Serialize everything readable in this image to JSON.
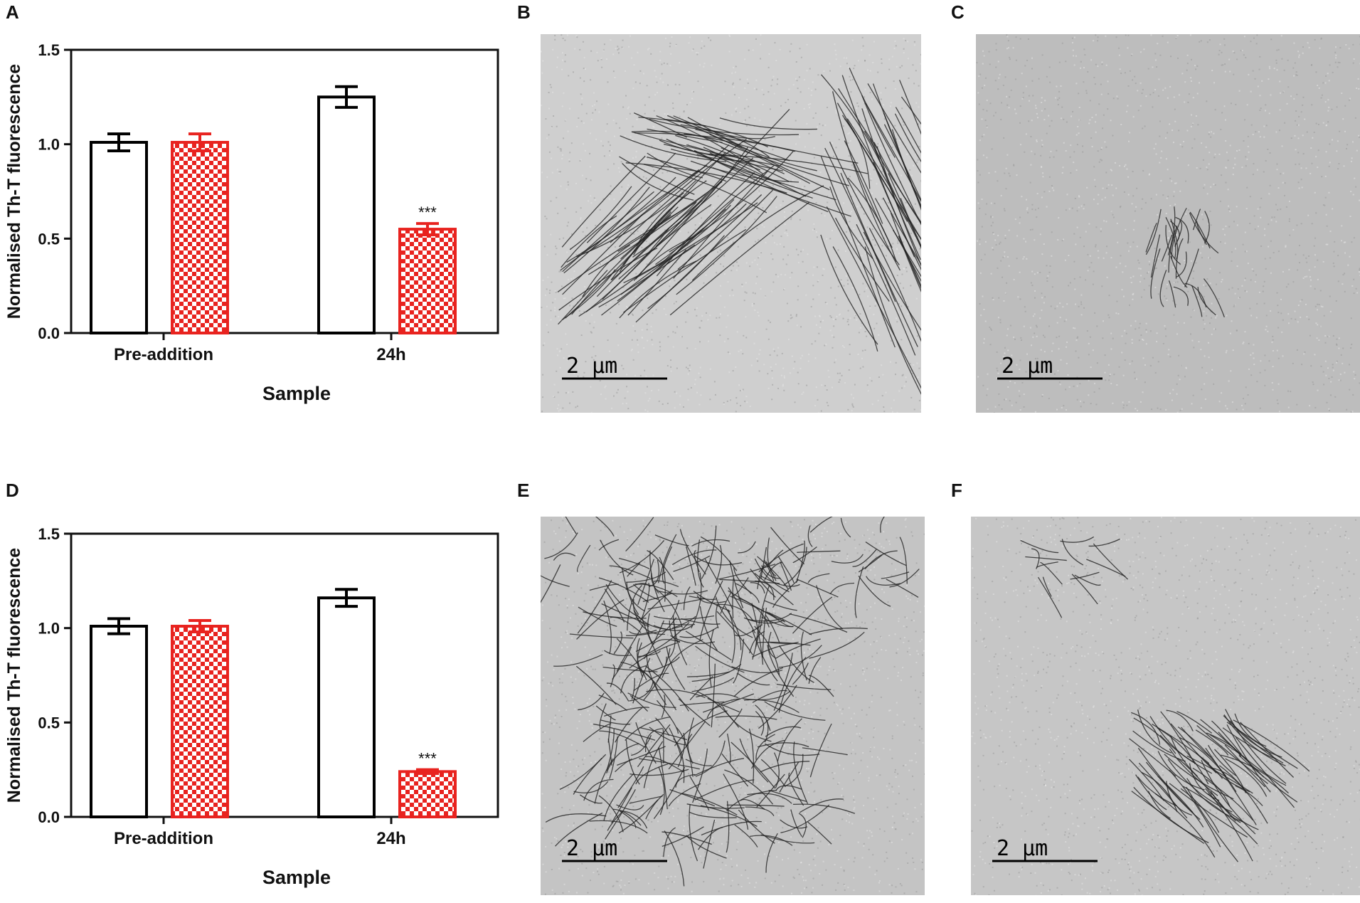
{
  "figure": {
    "panels": [
      "A",
      "B",
      "C",
      "D",
      "E",
      "F"
    ],
    "scale_bar_label": "2 µm"
  },
  "chart_data": [
    {
      "panel": "A",
      "type": "bar",
      "xlabel": "Sample",
      "ylabel": "Normalised Th-T fluorescence",
      "ylim": [
        0,
        1.5
      ],
      "yticks": [
        "0.0",
        "0.5",
        "1.0",
        "1.5"
      ],
      "categories": [
        "Pre-addition",
        "24h"
      ],
      "series": [
        {
          "values": [
            1.01,
            1.25
          ],
          "errors": [
            0.045,
            0.055
          ],
          "color": "#000000",
          "fill": "open"
        },
        {
          "values": [
            1.01,
            0.55
          ],
          "errors": [
            0.045,
            0.03
          ],
          "color": "#e8231f",
          "fill": "checkered"
        }
      ],
      "annotations": [
        {
          "category": "24h",
          "series": 1,
          "text": "***"
        }
      ],
      "grid": false,
      "legend": "none"
    },
    {
      "panel": "D",
      "type": "bar",
      "xlabel": "Sample",
      "ylabel": "Normalised Th-T fluorescence",
      "ylim": [
        0,
        1.5
      ],
      "yticks": [
        "0.0",
        "0.5",
        "1.0",
        "1.5"
      ],
      "categories": [
        "Pre-addition",
        "24h"
      ],
      "series": [
        {
          "values": [
            1.01,
            1.16
          ],
          "errors": [
            0.04,
            0.045
          ],
          "color": "#000000",
          "fill": "open"
        },
        {
          "values": [
            1.01,
            0.24
          ],
          "errors": [
            0.03,
            0.01
          ],
          "color": "#e8231f",
          "fill": "checkered"
        }
      ],
      "annotations": [
        {
          "category": "24h",
          "series": 1,
          "text": "***"
        }
      ],
      "grid": false,
      "legend": "none"
    }
  ]
}
